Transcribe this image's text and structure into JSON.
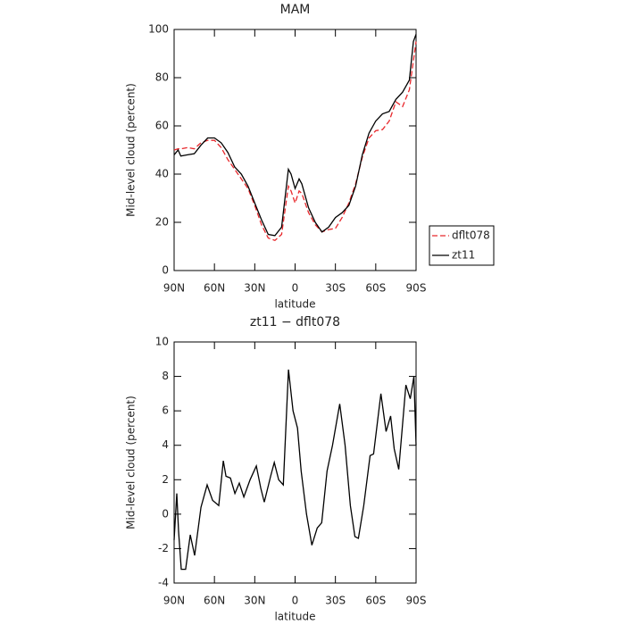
{
  "chart_data": [
    {
      "type": "line",
      "title": "MAM",
      "xlabel": "latitude",
      "ylabel": "Mid-level cloud (percent)",
      "x": [
        90,
        87,
        85,
        80,
        75,
        70,
        65,
        60,
        55,
        50,
        45,
        40,
        35,
        30,
        25,
        20,
        15,
        10,
        5,
        3,
        0,
        -3,
        -5,
        -10,
        -15,
        -20,
        -25,
        -30,
        -35,
        -40,
        -45,
        -50,
        -55,
        -60,
        -65,
        -70,
        -75,
        -80,
        -85,
        -88,
        -90
      ],
      "series": [
        {
          "name": "dflt078",
          "color": "#e8282c",
          "dash": true,
          "values": [
            50,
            50.5,
            50.5,
            51,
            50.5,
            53,
            54,
            54,
            51,
            46,
            42,
            38,
            34,
            27,
            19,
            13.5,
            12.5,
            15,
            35,
            33,
            28,
            33,
            32,
            24,
            19,
            16,
            17,
            17.5,
            22,
            28,
            36,
            47,
            55,
            58,
            58.5,
            62,
            70,
            68,
            75,
            87,
            95
          ]
        },
        {
          "name": "zt11",
          "color": "#000000",
          "dash": false,
          "values": [
            48,
            50,
            47.5,
            48,
            48.5,
            52,
            55,
            55,
            53,
            49,
            43,
            40,
            35,
            28,
            21,
            15,
            14.5,
            18,
            42,
            40,
            34,
            38,
            36,
            26,
            20,
            16,
            18,
            22,
            24,
            27,
            35,
            48,
            57,
            62,
            65,
            66,
            71,
            74,
            79,
            95,
            98
          ]
        }
      ],
      "xlim": [
        90,
        -90
      ],
      "xticks": [
        {
          "value": 90,
          "label": "90N"
        },
        {
          "value": 60,
          "label": "60N"
        },
        {
          "value": 30,
          "label": "30N"
        },
        0,
        {
          "value": -30,
          "label": "30S"
        },
        {
          "value": -60,
          "label": "60S"
        },
        {
          "value": -90,
          "label": "90S"
        }
      ],
      "ylim": [
        0,
        100
      ],
      "yticks": [
        0,
        20,
        40,
        60,
        80,
        100
      ],
      "legend": "right"
    },
    {
      "type": "line",
      "title": "zt11 − dflt078",
      "xlabel": "latitude",
      "ylabel": "Mid-level cloud (percent)",
      "x": [
        90,
        88,
        86.7,
        84.7,
        81.4,
        78,
        74.7,
        70,
        65.4,
        61.4,
        56.8,
        53.4,
        51.4,
        48.1,
        44.8,
        41.5,
        38.1,
        33.5,
        28.8,
        25.5,
        22.9,
        18.2,
        15.5,
        12.2,
        8.8,
        4.9,
        1.5,
        -1.8,
        -4.5,
        -8.5,
        -12.5,
        -16.5,
        -19.8,
        -23.8,
        -27.8,
        -33.2,
        -37.2,
        -41.1,
        -44.5,
        -47.1,
        -51.1,
        -55.8,
        -58.4,
        -63.8,
        -67.7,
        -71.1,
        -73.7,
        -77.1,
        -82.4,
        -85.7,
        -88.4,
        -90
      ],
      "series": [
        {
          "name": "zt11 − dflt078",
          "color": "#000000",
          "dash": false,
          "values": [
            -1.5,
            1.2,
            -1,
            -3.2,
            -3.2,
            -1.2,
            -2.4,
            0.4,
            1.7,
            0.8,
            0.5,
            3.1,
            2.2,
            2.1,
            1.2,
            1.8,
            1.0,
            2.0,
            2.8,
            1.5,
            0.7,
            2.2,
            3.0,
            2.0,
            1.7,
            8.4,
            6.0,
            5.0,
            2.5,
            0.0,
            -1.8,
            -0.8,
            -0.5,
            2.5,
            4.0,
            6.4,
            4.0,
            0.5,
            -1.3,
            -1.4,
            0.5,
            3.4,
            3.5,
            7.0,
            4.8,
            5.7,
            3.8,
            2.6,
            7.5,
            6.7,
            8.0,
            4.0
          ]
        }
      ],
      "xlim": [
        90,
        -90
      ],
      "xticks": [
        {
          "value": 90,
          "label": "90N"
        },
        {
          "value": 60,
          "label": "60N"
        },
        {
          "value": 30,
          "label": "30N"
        },
        0,
        {
          "value": -30,
          "label": "30S"
        },
        {
          "value": -60,
          "label": "60S"
        },
        {
          "value": -90,
          "label": "90S"
        }
      ],
      "ylim": [
        -4,
        10
      ],
      "yticks": [
        -4,
        -2,
        0,
        2,
        4,
        6,
        8,
        10
      ]
    }
  ]
}
